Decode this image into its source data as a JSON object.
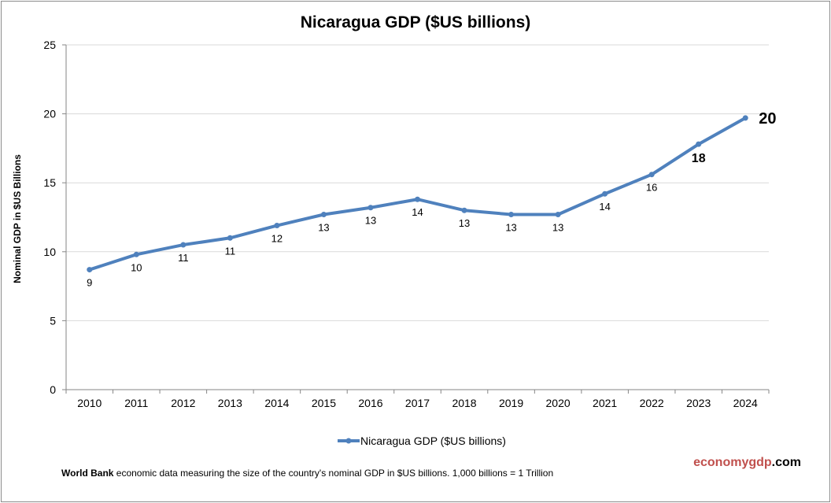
{
  "chart_data": {
    "type": "line",
    "title": "Nicaragua GDP ($US billions)",
    "xlabel": "",
    "ylabel": "Nominal GDP in $US Billions",
    "ylim": [
      0,
      25
    ],
    "yticks": [
      0,
      5,
      10,
      15,
      20,
      25
    ],
    "grid": true,
    "legend_position": "bottom",
    "categories": [
      "2010",
      "2011",
      "2012",
      "2013",
      "2014",
      "2015",
      "2016",
      "2017",
      "2018",
      "2019",
      "2020",
      "2021",
      "2022",
      "2023",
      "2024"
    ],
    "series": [
      {
        "name": "Nicaragua GDP ($US billions)",
        "color": "#4f81bd",
        "values": [
          8.7,
          9.8,
          10.5,
          11.0,
          11.9,
          12.7,
          13.2,
          13.8,
          13.0,
          12.7,
          12.7,
          14.2,
          15.6,
          17.8,
          19.7
        ],
        "data_labels": [
          "9",
          "10",
          "11",
          "11",
          "12",
          "13",
          "13",
          "14",
          "13",
          "13",
          "13",
          "14",
          "16",
          "18",
          "20"
        ]
      }
    ]
  },
  "footer": {
    "source_bold": "World Bank",
    "source_text": " economic data  measuring the size of the country's nominal GDP in $US billions. 1,000 billions = 1 Trillion",
    "brand_part1": "economygdp",
    "brand_part2": ".com",
    "brand_color": "#c0504d"
  }
}
